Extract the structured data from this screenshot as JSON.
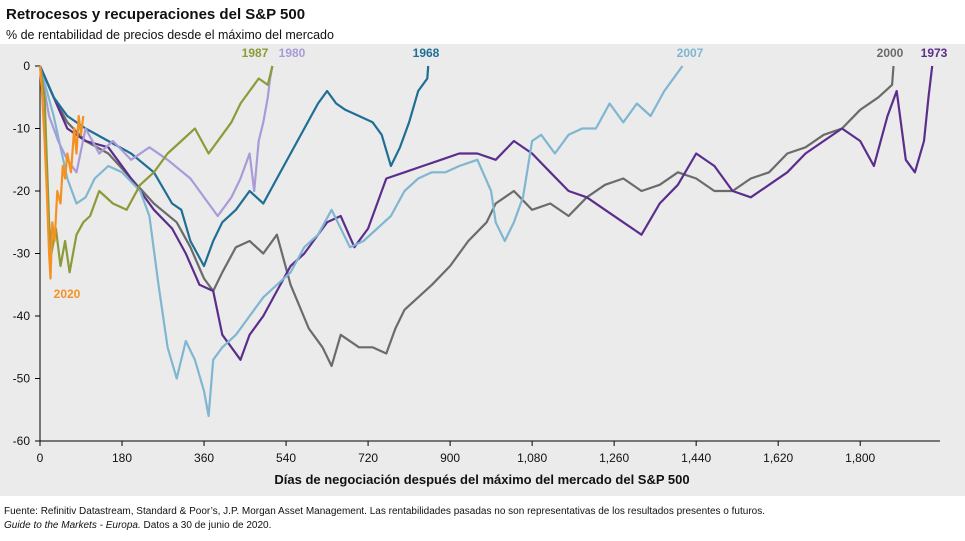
{
  "chart_data": {
    "type": "line",
    "title": "Retrocesos y recuperaciones del S&P 500",
    "subtitle": "% de rentabilidad de precios desde el máximo del mercado",
    "x_label": "Días de negociación después del máximo del mercado del S&P 500",
    "source": "Fuente: Refinitiv Datastream, Standard & Poor’s, J.P. Morgan Asset Management. Las rentabilidades pasadas no son representativas de los resultados presentes o futuros.",
    "note_italic": "Guide to the Markets - Europa.",
    "note": "Datos a 30 de junio de 2020.",
    "xlim": [
      0,
      2030
    ],
    "ylim": [
      -60,
      0
    ],
    "xticks": [
      0,
      180,
      360,
      540,
      720,
      900,
      {
        "value": 1080,
        "label": "1,080"
      },
      {
        "value": 1260,
        "label": "1,260"
      },
      {
        "value": 1440,
        "label": "1,440"
      },
      {
        "value": 1620,
        "label": "1,620"
      },
      {
        "value": 1800,
        "label": "1,800"
      }
    ],
    "yticks": [
      0,
      -10,
      -20,
      -30,
      -40,
      -50,
      -60
    ],
    "series": [
      {
        "name": "2000",
        "color": "#6b6b6b",
        "x": [
          0,
          30,
          60,
          100,
          150,
          200,
          250,
          300,
          330,
          360,
          380,
          400,
          430,
          460,
          490,
          520,
          550,
          590,
          620,
          640,
          660,
          700,
          730,
          760,
          780,
          800,
          830,
          860,
          900,
          940,
          980,
          1000,
          1040,
          1080,
          1120,
          1160,
          1200,
          1240,
          1280,
          1320,
          1360,
          1400,
          1440,
          1480,
          1520,
          1560,
          1600,
          1640,
          1680,
          1720,
          1760,
          1800,
          1840,
          1870,
          1873
        ],
        "values": [
          0,
          -5,
          -9,
          -12,
          -14,
          -18,
          -22,
          -25,
          -29,
          -34,
          -36,
          -33,
          -29,
          -28,
          -30,
          -27,
          -35,
          -42,
          -45,
          -48,
          -43,
          -45,
          -45,
          -46,
          -42,
          -39,
          -37,
          -35,
          -32,
          -28,
          -25,
          -22,
          -20,
          -23,
          -22,
          -24,
          -21,
          -19,
          -18,
          -20,
          -19,
          -17,
          -18,
          -20,
          -20,
          -18,
          -17,
          -14,
          -13,
          -11,
          -10,
          -7,
          -5,
          -3,
          0
        ]
      },
      {
        "name": "1973",
        "color": "#5b2e8c",
        "x": [
          0,
          30,
          60,
          100,
          150,
          200,
          250,
          290,
          320,
          350,
          380,
          400,
          420,
          440,
          460,
          490,
          520,
          550,
          580,
          600,
          630,
          660,
          690,
          720,
          760,
          800,
          840,
          880,
          920,
          960,
          1000,
          1040,
          1080,
          1120,
          1160,
          1200,
          1240,
          1280,
          1320,
          1360,
          1400,
          1440,
          1480,
          1520,
          1560,
          1600,
          1640,
          1680,
          1720,
          1760,
          1800,
          1830,
          1860,
          1880,
          1900,
          1920,
          1940,
          1950,
          1958
        ],
        "values": [
          0,
          -5,
          -10,
          -12,
          -13,
          -18,
          -23,
          -26,
          -30,
          -35,
          -36,
          -43,
          -45,
          -47,
          -43,
          -40,
          -36,
          -32,
          -30,
          -28,
          -25,
          -24,
          -29,
          -26,
          -18,
          -17,
          -16,
          -15,
          -14,
          -14,
          -15,
          -12,
          -14,
          -17,
          -20,
          -21,
          -23,
          -25,
          -27,
          -22,
          -19,
          -14,
          -16,
          -20,
          -21,
          -19,
          -17,
          -14,
          -12,
          -10,
          -12,
          -16,
          -8,
          -4,
          -15,
          -17,
          -12,
          -5,
          0
        ]
      },
      {
        "name": "2007",
        "color": "#7fb6d1",
        "x": [
          0,
          30,
          60,
          80,
          100,
          120,
          150,
          180,
          220,
          240,
          260,
          280,
          300,
          320,
          340,
          360,
          370,
          380,
          400,
          430,
          460,
          490,
          520,
          550,
          580,
          610,
          640,
          680,
          710,
          740,
          770,
          800,
          830,
          860,
          890,
          920,
          960,
          990,
          1000,
          1020,
          1040,
          1060,
          1080,
          1100,
          1130,
          1160,
          1190,
          1220,
          1250,
          1280,
          1310,
          1340,
          1370,
          1390,
          1410
        ],
        "values": [
          0,
          -8,
          -18,
          -22,
          -21,
          -18,
          -16,
          -17,
          -20,
          -24,
          -35,
          -45,
          -50,
          -44,
          -47,
          -52,
          -56,
          -47,
          -45,
          -43,
          -40,
          -37,
          -35,
          -33,
          -29,
          -27,
          -23,
          -29,
          -28,
          -26,
          -24,
          -20,
          -18,
          -17,
          -17,
          -16,
          -15,
          -20,
          -25,
          -28,
          -25,
          -21,
          -12,
          -11,
          -14,
          -11,
          -10,
          -10,
          -6,
          -9,
          -6,
          -8,
          -4,
          -2,
          0
        ]
      },
      {
        "name": "1968",
        "color": "#1f6e94",
        "x": [
          0,
          30,
          60,
          100,
          150,
          200,
          250,
          290,
          310,
          330,
          360,
          380,
          400,
          430,
          460,
          490,
          520,
          550,
          580,
          610,
          630,
          650,
          670,
          700,
          730,
          750,
          770,
          790,
          810,
          830,
          850,
          852
        ],
        "values": [
          0,
          -5,
          -8,
          -10,
          -12,
          -14,
          -17,
          -22,
          -23,
          -28,
          -32,
          -28,
          -25,
          -23,
          -20,
          -22,
          -18,
          -14,
          -10,
          -6,
          -4,
          -6,
          -7,
          -8,
          -9,
          -11,
          -16,
          -13,
          -9,
          -4,
          -2,
          0
        ]
      },
      {
        "name": "1980",
        "color": "#a99bd8",
        "x": [
          0,
          20,
          40,
          60,
          80,
          100,
          130,
          160,
          200,
          240,
          280,
          330,
          370,
          390,
          420,
          440,
          460,
          470,
          480,
          490,
          500,
          505,
          510
        ],
        "values": [
          0,
          -8,
          -12,
          -15,
          -17,
          -10,
          -14,
          -12,
          -15,
          -13,
          -15,
          -18,
          -22,
          -24,
          -21,
          -18,
          -14,
          -20,
          -12,
          -9,
          -5,
          -2,
          0
        ]
      },
      {
        "name": "1987",
        "color": "#8c9a3a",
        "x": [
          0,
          10,
          15,
          20,
          25,
          35,
          45,
          55,
          65,
          80,
          95,
          110,
          130,
          160,
          190,
          220,
          250,
          280,
          310,
          340,
          370,
          400,
          420,
          440,
          460,
          480,
          500,
          510
        ],
        "values": [
          0,
          -5,
          -15,
          -25,
          -30,
          -26,
          -32,
          -28,
          -33,
          -27,
          -25,
          -24,
          -20,
          -22,
          -23,
          -19,
          -17,
          -14,
          -12,
          -10,
          -14,
          -11,
          -9,
          -6,
          -4,
          -2,
          -3,
          0
        ]
      },
      {
        "name": "2020",
        "color": "#f39223",
        "x": [
          0,
          5,
          10,
          15,
          20,
          23,
          27,
          32,
          38,
          45,
          50,
          55,
          60,
          68,
          75,
          80,
          85,
          90,
          95
        ],
        "values": [
          0,
          -5,
          -12,
          -20,
          -30,
          -34,
          -25,
          -28,
          -20,
          -22,
          -16,
          -18,
          -14,
          -17,
          -10,
          -14,
          -8,
          -11,
          -8
        ]
      }
    ]
  }
}
